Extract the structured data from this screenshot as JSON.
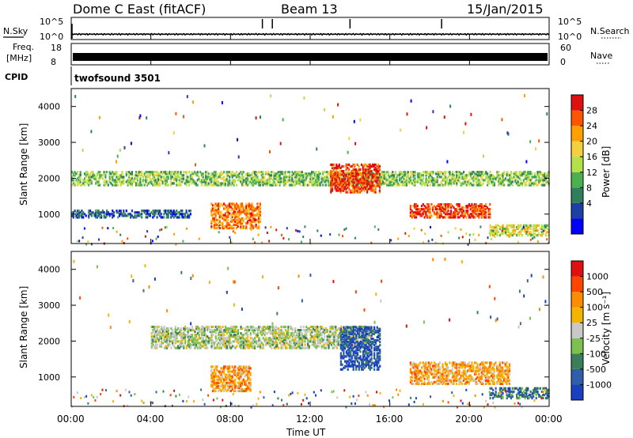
{
  "header": {
    "station": "Dome C East (fitACF)",
    "beam": "Beam 13",
    "date": "15/Jan/2015"
  },
  "noise_panel": {
    "left_label": "N.Sky",
    "right_label": "N.Search",
    "ticks_left": [
      "10^5",
      "10^0"
    ],
    "ticks_right": [
      "10^5",
      "10^0"
    ]
  },
  "freq_panel": {
    "left_label_line1": "Freq.",
    "left_label_line2": "[MHz]",
    "right_label": "Nave",
    "ticks_left": [
      "18",
      "8"
    ],
    "ticks_right": [
      "60",
      "0"
    ]
  },
  "cpid_panel": {
    "label": "CPID",
    "value": "twofsound 3501"
  },
  "power_panel": {
    "ylabel": "Slant Range [km]",
    "yticks": [
      "4000",
      "3000",
      "2000",
      "1000"
    ],
    "colorbar_label": "Power [dB]",
    "colorbar_ticks": [
      "28",
      "24",
      "20",
      "16",
      "12",
      "8",
      "4"
    ],
    "colors": [
      "#0000ff",
      "#1d3fa6",
      "#2f7f5f",
      "#4caf50",
      "#b4e04a",
      "#f4d03f",
      "#ff9f00",
      "#ff5500",
      "#e01010"
    ]
  },
  "velocity_panel": {
    "ylabel": "Slant Range [km]",
    "yticks": [
      "4000",
      "3000",
      "2000",
      "1000"
    ],
    "colorbar_label": "Velocity [m s⁻¹]",
    "colorbar_ticks": [
      "1000",
      "500",
      "100",
      "25",
      "-25",
      "-100",
      "-500",
      "-1000"
    ],
    "colors": [
      "#1a3fbf",
      "#2f5faa",
      "#3a7f5a",
      "#7cc04f",
      "#c8c8c8",
      "#f4b400",
      "#ff8c00",
      "#ff4500",
      "#e01010"
    ]
  },
  "x_axis": {
    "label": "Time UT",
    "ticks": [
      "00:00",
      "04:00",
      "08:00",
      "12:00",
      "16:00",
      "20:00",
      "00:00"
    ]
  },
  "chart_data": [
    {
      "type": "line",
      "title": "N.Sky / N.Search",
      "x_range_hours": [
        0,
        24
      ],
      "ylim": [
        1,
        100000
      ],
      "log_scale": true,
      "series": [
        {
          "name": "N.Sky",
          "x": [
            0,
            4,
            8,
            12,
            16,
            20,
            24
          ],
          "values": [
            10,
            10,
            10,
            10,
            10,
            10,
            10
          ]
        }
      ]
    },
    {
      "type": "area",
      "title": "Freq. [MHz]",
      "x_range_hours": [
        0,
        24
      ],
      "ylim": [
        8,
        18
      ],
      "series": [
        {
          "name": "Freq.",
          "x": [
            0,
            24
          ],
          "values": [
            12,
            12
          ]
        }
      ]
    },
    {
      "type": "heatmap",
      "title": "Power [dB]",
      "x_range_hours": [
        0,
        24
      ],
      "ylim": [
        180,
        4500
      ],
      "zlim": [
        0,
        30
      ],
      "features": [
        {
          "t0": 0.0,
          "t1": 24.0,
          "r0": 1800,
          "r1": 2200,
          "level": 4
        },
        {
          "t0": 0.0,
          "t1": 6.0,
          "r0": 900,
          "r1": 1100,
          "level": 2
        },
        {
          "t0": 7.0,
          "t1": 9.5,
          "r0": 600,
          "r1": 1300,
          "level": 7
        },
        {
          "t0": 13.0,
          "t1": 15.5,
          "r0": 1600,
          "r1": 2400,
          "level": 8
        },
        {
          "t0": 17.0,
          "t1": 21.0,
          "r0": 900,
          "r1": 1300,
          "level": 8
        },
        {
          "t0": 21.0,
          "t1": 24.0,
          "r0": 400,
          "r1": 700,
          "level": 5
        }
      ]
    },
    {
      "type": "heatmap",
      "title": "Velocity [m s⁻¹]",
      "x_range_hours": [
        0,
        24
      ],
      "ylim": [
        180,
        4500
      ],
      "zlim": [
        -1000,
        1000
      ],
      "features": [
        {
          "t0": 4.0,
          "t1": 15.0,
          "r0": 1800,
          "r1": 2400,
          "level": 4
        },
        {
          "t0": 7.0,
          "t1": 9.0,
          "r0": 600,
          "r1": 1300,
          "level": 6
        },
        {
          "t0": 13.5,
          "t1": 15.5,
          "r0": 1200,
          "r1": 2400,
          "level": 1
        },
        {
          "t0": 17.0,
          "t1": 22.0,
          "r0": 800,
          "r1": 1400,
          "level": 6
        },
        {
          "t0": 21.0,
          "t1": 24.0,
          "r0": 400,
          "r1": 700,
          "level": 2
        }
      ]
    }
  ]
}
